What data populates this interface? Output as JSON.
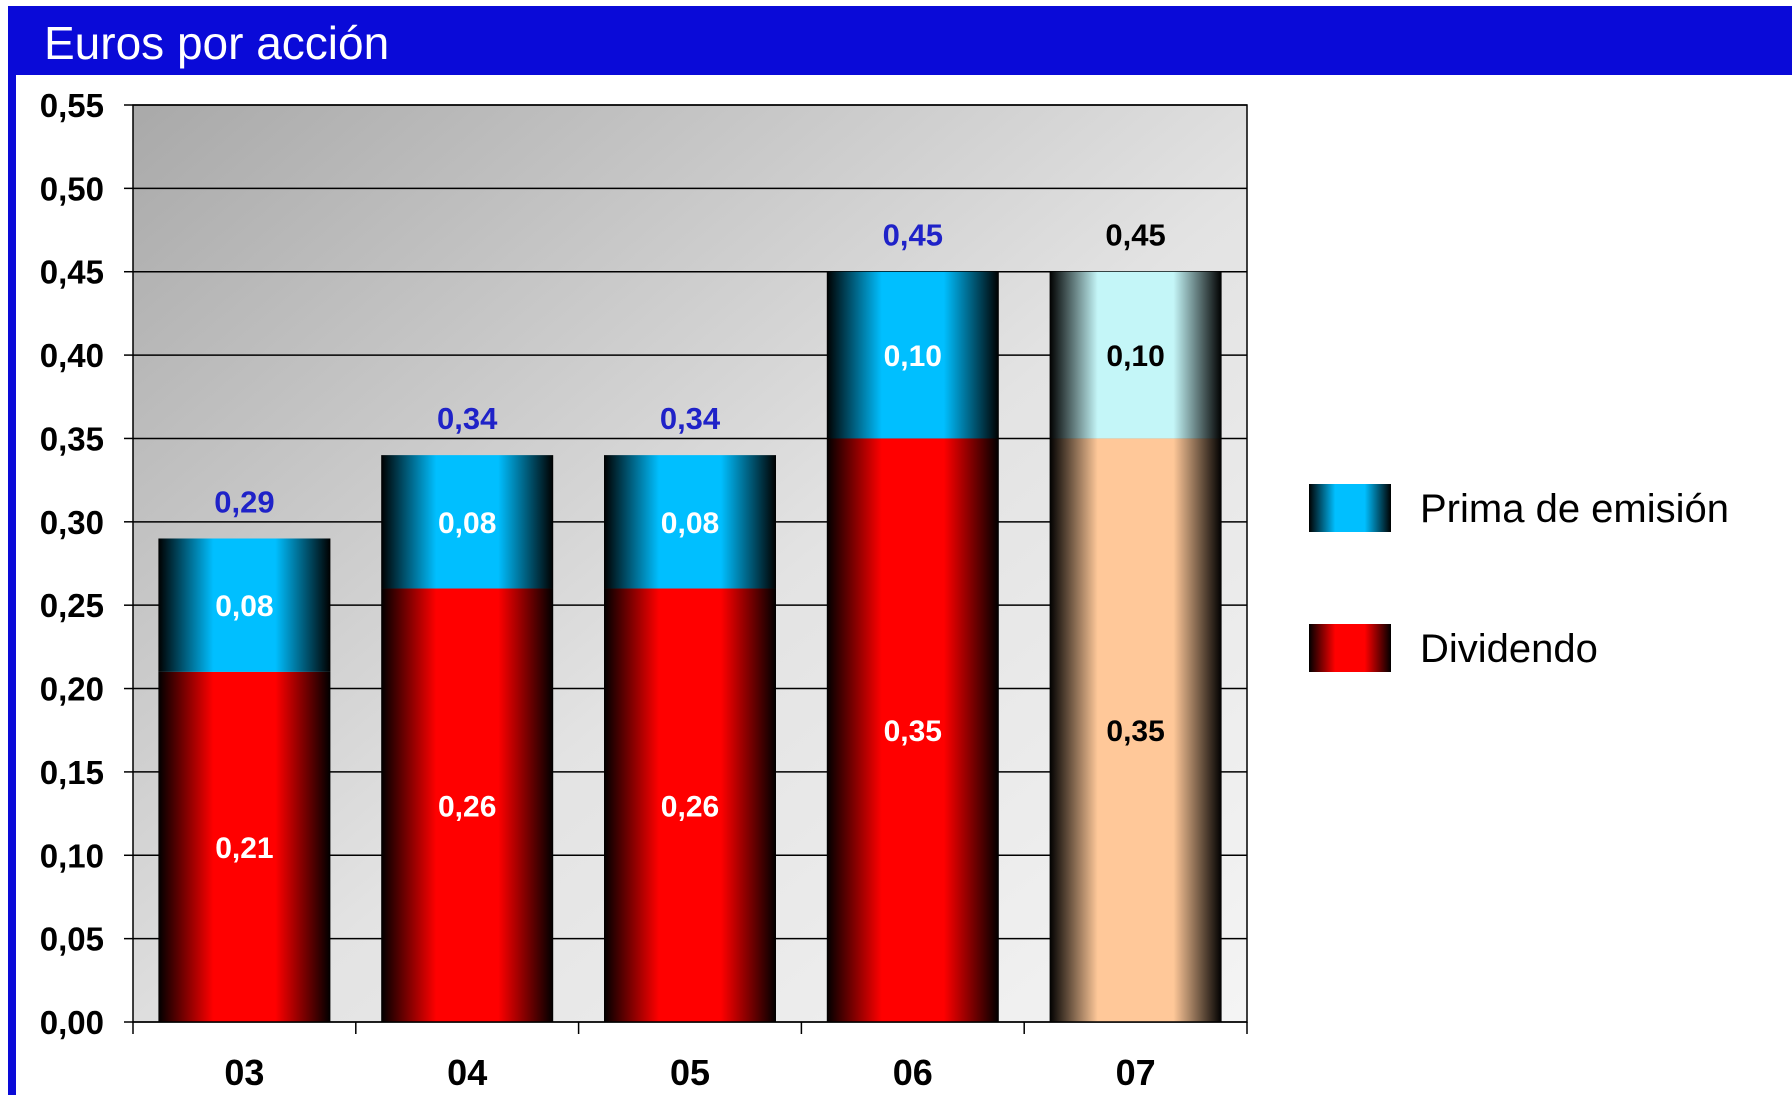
{
  "title": "Euros por acción",
  "colors": {
    "frame": "#0a0ad8",
    "dividendo": "#ff0000",
    "prima": "#00bfff",
    "dividendo_estimate": "#ffc899",
    "prima_estimate": "#c4f6f8",
    "total_label_blue": "#1f22c8",
    "total_label_black": "#000000"
  },
  "chart_data": {
    "type": "bar",
    "stacked": true,
    "title": "Euros por acción",
    "categories": [
      "03",
      "04",
      "05",
      "06",
      "07"
    ],
    "series": [
      {
        "name": "Dividendo",
        "values": [
          0.21,
          0.26,
          0.26,
          0.35,
          0.35
        ],
        "labels": [
          "0,21",
          "0,26",
          "0,26",
          "0,35",
          "0,35"
        ]
      },
      {
        "name": "Prima de emisión",
        "values": [
          0.08,
          0.08,
          0.08,
          0.1,
          0.1
        ],
        "labels": [
          "0,08",
          "0,08",
          "0,08",
          "0,10",
          "0,10"
        ]
      }
    ],
    "totals": [
      0.29,
      0.34,
      0.34,
      0.45,
      0.45
    ],
    "total_labels": [
      "0,29",
      "0,34",
      "0,34",
      "0,45",
      "0,45"
    ],
    "ylim": [
      0,
      0.55
    ],
    "yticks": [
      "0,00",
      "0,05",
      "0,10",
      "0,15",
      "0,20",
      "0,25",
      "0,30",
      "0,35",
      "0,40",
      "0,45",
      "0,50",
      "0,55"
    ],
    "grid": true,
    "legend_position": "right",
    "legend": [
      "Prima de emisión",
      "Dividendo"
    ],
    "estimate_category": "07"
  }
}
